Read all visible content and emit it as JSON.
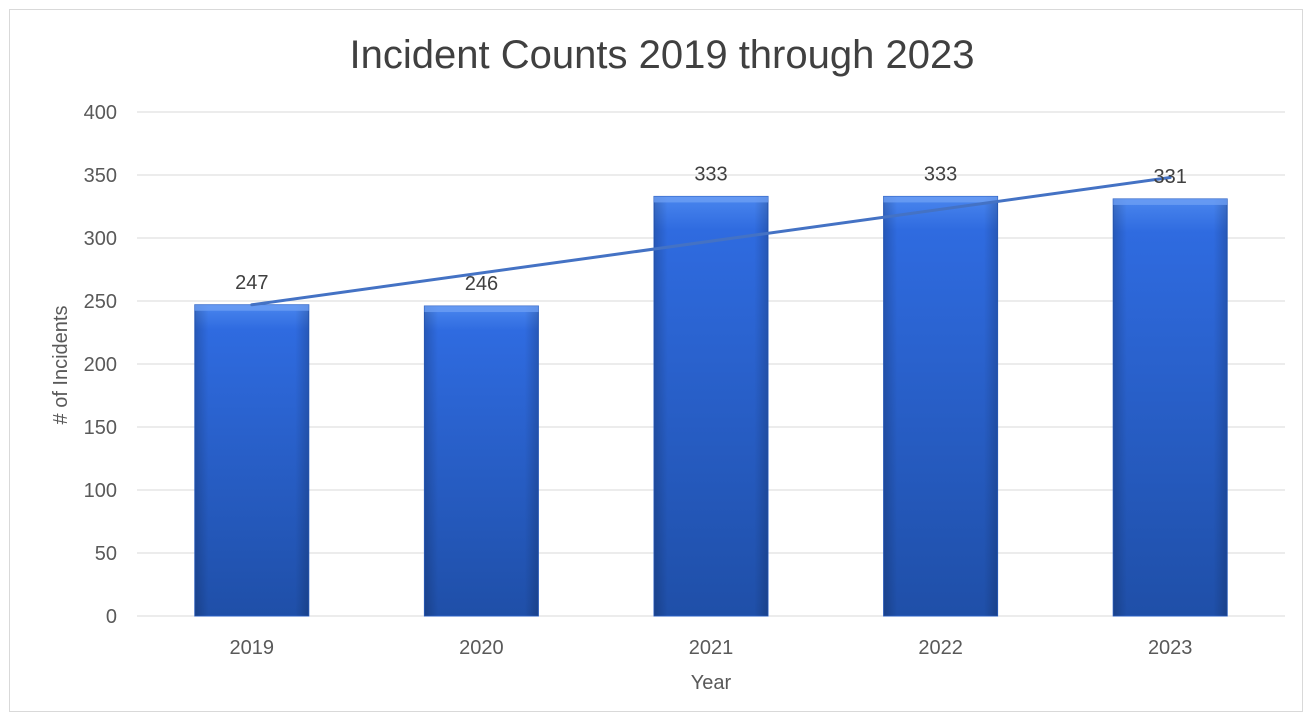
{
  "chart_data": {
    "type": "bar",
    "title": "Incident Counts 2019 through 2023",
    "xlabel": "Year",
    "ylabel": "# of Incidents",
    "categories": [
      "2019",
      "2020",
      "2021",
      "2022",
      "2023"
    ],
    "values": [
      247,
      246,
      333,
      333,
      331
    ],
    "ylim": [
      0,
      400
    ],
    "yticks": [
      0,
      50,
      100,
      150,
      200,
      250,
      300,
      350,
      400
    ],
    "grid": true,
    "legend": "none",
    "data_labels": [
      "247",
      "246",
      "333",
      "333",
      "331"
    ],
    "trendline": {
      "type": "linear",
      "start_value": 247,
      "end_value": 348
    },
    "colors": {
      "bar_top": "#3f7ae6",
      "bar_bottom": "#1f4fa8",
      "trendline": "#4472c4",
      "grid": "#d9d9d9"
    }
  }
}
